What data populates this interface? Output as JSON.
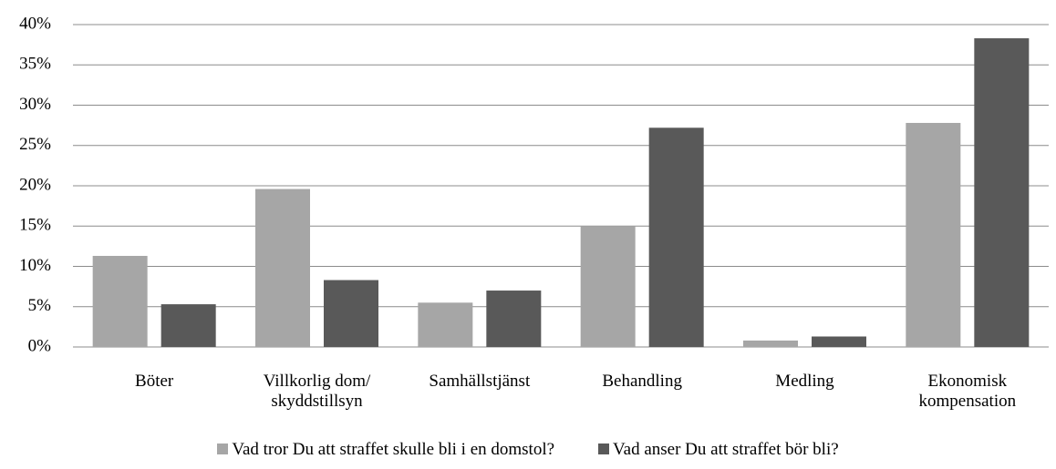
{
  "chart_data": {
    "type": "bar",
    "categories": [
      "Böter",
      "Villkorlig dom/ skyddstillsyn",
      "Samhällstjänst",
      "Behandling",
      "Medling",
      "Ekonomisk kompensation"
    ],
    "series": [
      {
        "name": "Vad tror Du att straffet skulle bli i en domstol?",
        "color": "#a6a6a6",
        "values": [
          11.3,
          19.6,
          5.5,
          15.0,
          0.8,
          27.8
        ]
      },
      {
        "name": "Vad anser Du att straffet bör bli?",
        "color": "#595959",
        "values": [
          5.3,
          8.3,
          7.0,
          27.2,
          1.3,
          38.3
        ]
      }
    ],
    "ylim": [
      0,
      40
    ],
    "yticks": [
      {
        "value": 0,
        "label": "0%"
      },
      {
        "value": 5,
        "label": "5%"
      },
      {
        "value": 10,
        "label": "10%"
      },
      {
        "value": 15,
        "label": "15%"
      },
      {
        "value": 20,
        "label": "20%"
      },
      {
        "value": 25,
        "label": "25%"
      },
      {
        "value": 30,
        "label": "30%"
      },
      {
        "value": 35,
        "label": "35%"
      },
      {
        "value": 40,
        "label": "40%"
      }
    ],
    "grid": true,
    "legend": "bottom"
  }
}
